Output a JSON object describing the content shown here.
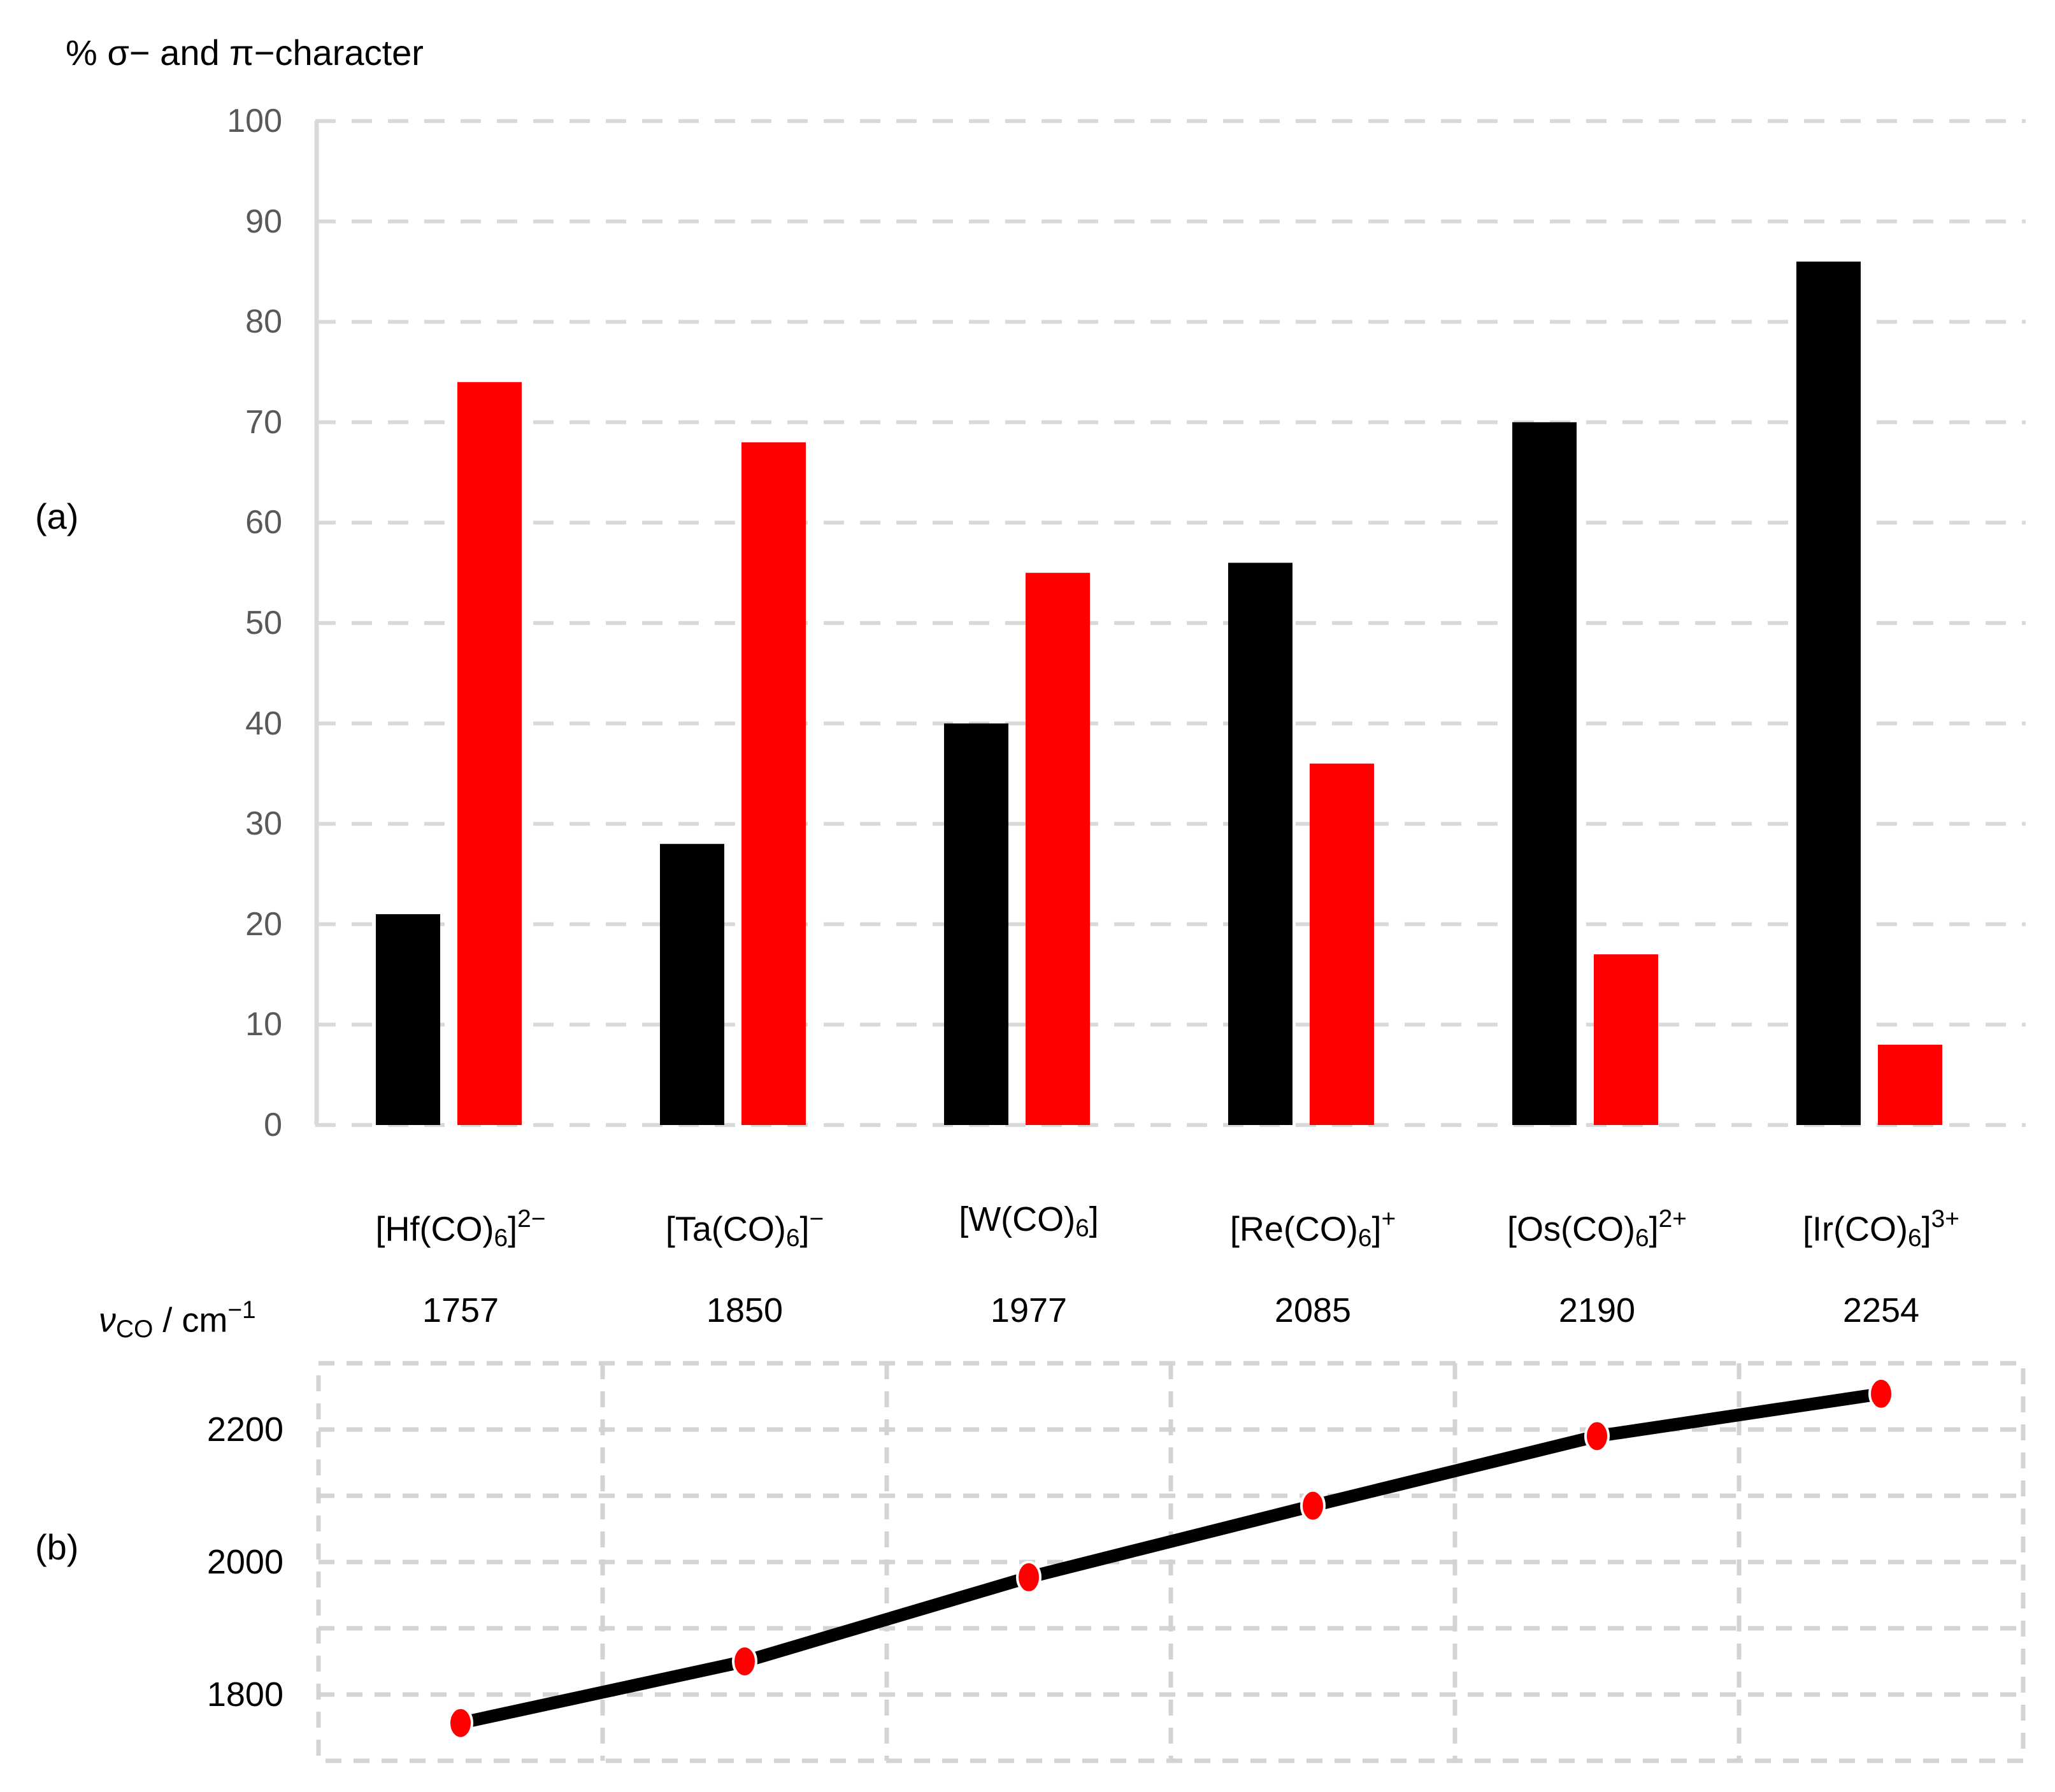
{
  "title": "% σ− and π−character",
  "panel_a_label": "(a)",
  "panel_b_label": "(b)",
  "co_axis": {
    "parts": {
      "nu": "ν",
      "co": "CO",
      "mid": " / cm",
      "exp": "−1"
    },
    "values": [
      "1757",
      "1850",
      "1977",
      "2085",
      "2190",
      "2254"
    ]
  },
  "colors": {
    "bar_black": "#000000",
    "bar_red": "#ff0000",
    "grid_a": "#d9d9d9",
    "axis_a": "#d9d9d9",
    "grid_b": "#d3d3d3",
    "tick_gray": "#595959",
    "text": "#000000",
    "line": "#000000",
    "marker_fill": "#ff0000",
    "marker_outline": "#ffffff"
  },
  "chart_data": [
    {
      "id": "a",
      "type": "bar",
      "title": "% σ− and π−character",
      "categories": [
        "[Hf(CO)6]2−",
        "[Ta(CO)6]−",
        "[W(CO)6]",
        "[Re(CO)6]+",
        "[Os(CO)6]2+",
        "[Ir(CO)6]3+"
      ],
      "categories_rich": [
        {
          "pre": "[Hf(CO)",
          "sub": "6",
          "post": "]",
          "sup": "2−"
        },
        {
          "pre": "[Ta(CO)",
          "sub": "6",
          "post": "]",
          "sup": "−"
        },
        {
          "pre": "[W(CO)",
          "sub": "6",
          "post": "]",
          "sup": ""
        },
        {
          "pre": "[Re(CO)",
          "sub": "6",
          "post": "]",
          "sup": "+"
        },
        {
          "pre": "[Os(CO)",
          "sub": "6",
          "post": "]",
          "sup": "2+"
        },
        {
          "pre": "[Ir(CO)",
          "sub": "6",
          "post": "]",
          "sup": "3+"
        }
      ],
      "series": [
        {
          "name": "σ-character",
          "color": "#000000",
          "values": [
            21,
            28,
            40,
            56,
            70,
            86
          ]
        },
        {
          "name": "π-character",
          "color": "#ff0000",
          "values": [
            74,
            68,
            55,
            36,
            17,
            8
          ]
        }
      ],
      "ylim": [
        0,
        100
      ],
      "yticks": [
        0,
        10,
        20,
        30,
        40,
        50,
        60,
        70,
        80,
        90,
        100
      ],
      "grid": "dashed-horizontal",
      "legend": "none"
    },
    {
      "id": "b",
      "type": "line",
      "x_categories": [
        "[Hf(CO)6]2−",
        "[Ta(CO)6]−",
        "[W(CO)6]",
        "[Re(CO)6]+",
        "[Os(CO)6]2+",
        "[Ir(CO)6]3+"
      ],
      "ylabel": "νCO / cm−1",
      "values": [
        1757,
        1850,
        1977,
        2085,
        2190,
        2254
      ],
      "ylim": [
        1700,
        2300
      ],
      "yticks_labeled": [
        2200,
        2000,
        1800
      ],
      "gridline_step": 100,
      "grid": "dashed-frame-horizontal-vertical",
      "legend": "none"
    }
  ]
}
